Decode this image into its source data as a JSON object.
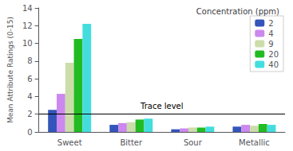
{
  "chart_data": {
    "type": "bar",
    "categories": [
      "Sweet",
      "Bitter",
      "Sour",
      "Metallic"
    ],
    "series": [
      {
        "name": "2",
        "color": "#3355bb",
        "values": [
          2.5,
          0.8,
          0.3,
          0.6
        ]
      },
      {
        "name": "4",
        "color": "#cc88ee",
        "values": [
          4.3,
          1.0,
          0.4,
          0.8
        ]
      },
      {
        "name": "9",
        "color": "#ccddaa",
        "values": [
          7.8,
          1.1,
          0.5,
          0.7
        ]
      },
      {
        "name": "20",
        "color": "#22bb22",
        "values": [
          10.5,
          1.4,
          0.5,
          0.9
        ]
      },
      {
        "name": "40",
        "color": "#44dddd",
        "values": [
          12.2,
          1.5,
          0.6,
          0.8
        ]
      }
    ],
    "ylabel": "Mean Attribute Ratings (0-15)",
    "ylim": [
      0,
      14
    ],
    "yticks": [
      0,
      2,
      4,
      6,
      8,
      10,
      12,
      14
    ],
    "grid": false,
    "legend": "upper right",
    "legend_title": "Concentration (ppm)",
    "annotations": [
      {
        "type": "hline",
        "y": 2,
        "text": "Trace level"
      }
    ]
  }
}
